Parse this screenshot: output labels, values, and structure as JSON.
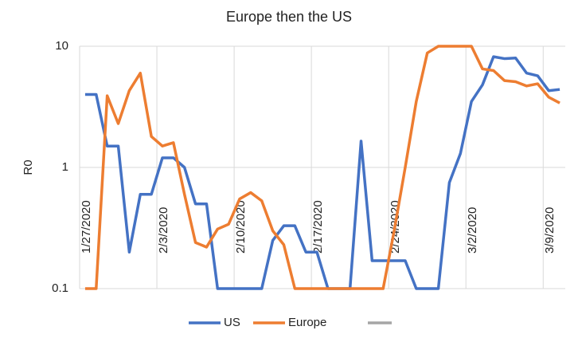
{
  "chart_data": {
    "type": "line",
    "title": "Europe then the US",
    "y_label": "R0",
    "categories": [
      "1/27/2020",
      null,
      null,
      null,
      null,
      null,
      null,
      "2/3/2020",
      null,
      null,
      null,
      null,
      null,
      null,
      "2/10/2020",
      null,
      null,
      null,
      null,
      null,
      null,
      "2/17/2020",
      null,
      null,
      null,
      null,
      null,
      null,
      "2/24/2020",
      null,
      null,
      null,
      null,
      null,
      null,
      "3/2/2020",
      null,
      null,
      null,
      null,
      null,
      null,
      "3/9/2020",
      null
    ],
    "series": [
      {
        "name": "US",
        "color": "#4472c4",
        "values": [
          4.0,
          4.0,
          1.5,
          1.5,
          0.2,
          0.6,
          0.6,
          1.2,
          1.2,
          1.0,
          0.5,
          0.5,
          0.1,
          0.1,
          0.1,
          0.1,
          0.1,
          0.25,
          0.33,
          0.33,
          0.2,
          0.2,
          0.1,
          0.1,
          0.1,
          1.65,
          0.17,
          0.17,
          0.17,
          0.17,
          0.1,
          0.1,
          0.1,
          0.75,
          1.3,
          3.5,
          4.8,
          8.2,
          7.9,
          8.0,
          6.0,
          5.7,
          4.3,
          4.4
        ]
      },
      {
        "name": "Europe",
        "color": "#ed7d31",
        "values": [
          0.1,
          0.1,
          3.9,
          2.3,
          4.3,
          6.0,
          1.8,
          1.5,
          1.6,
          0.6,
          0.24,
          0.22,
          0.31,
          0.34,
          0.55,
          0.62,
          0.53,
          0.3,
          0.23,
          0.1,
          0.1,
          0.1,
          0.1,
          0.1,
          0.1,
          0.1,
          0.1,
          0.1,
          0.3,
          1.0,
          3.5,
          8.8,
          10,
          10,
          10,
          10,
          6.5,
          6.3,
          5.2,
          5.1,
          4.7,
          4.9,
          3.8,
          3.4
        ]
      }
    ],
    "ylim": [
      0.1,
      10
    ],
    "yticks": [
      0.1,
      1,
      10
    ],
    "log_y": true,
    "grid": true,
    "legend": "bottom"
  }
}
